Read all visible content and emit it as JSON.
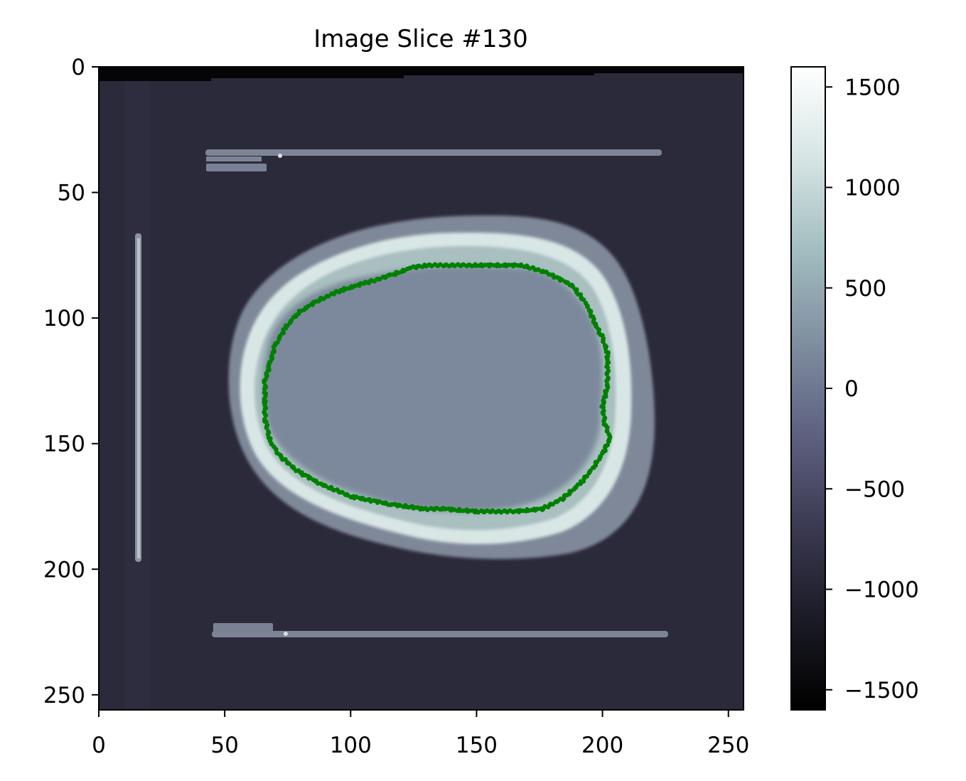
{
  "chart_data": {
    "type": "heatmap",
    "title": "Image Slice #130",
    "xlabel": "",
    "ylabel": "",
    "xlim": [
      0,
      256
    ],
    "ylim": [
      256,
      0
    ],
    "x_ticks": [
      0,
      50,
      100,
      150,
      200,
      250
    ],
    "y_ticks": [
      0,
      50,
      100,
      150,
      200,
      250
    ],
    "x_tick_labels": [
      "0",
      "50",
      "100",
      "150",
      "200",
      "250"
    ],
    "y_tick_labels": [
      "0",
      "50",
      "100",
      "150",
      "200",
      "250"
    ],
    "grid": false,
    "colormap": "bone",
    "colorbar": {
      "range": [
        -1600,
        1600
      ],
      "ticks": [
        -1500,
        -1000,
        -500,
        0,
        500,
        1000,
        1500
      ],
      "tick_labels": [
        "−1500",
        "−1000",
        "−500",
        "0",
        "500",
        "1000",
        "1500"
      ],
      "colors": [
        "#000000",
        "#1b1b26",
        "#3b3a52",
        "#5e6180",
        "#7f8ea0",
        "#a2bdbf",
        "#d6e4e4",
        "#ffffff"
      ]
    },
    "background_color": "#2b2a3b",
    "contour": {
      "color": "#008000",
      "points": [
        [
          130,
          79
        ],
        [
          150,
          79
        ],
        [
          168,
          79
        ],
        [
          178,
          82
        ],
        [
          188,
          87
        ],
        [
          194,
          95
        ],
        [
          197,
          102
        ],
        [
          200,
          108
        ],
        [
          202,
          114
        ],
        [
          202,
          120
        ],
        [
          202,
          127
        ],
        [
          200,
          135
        ],
        [
          201,
          142
        ],
        [
          203,
          148
        ],
        [
          200,
          154
        ],
        [
          196,
          160
        ],
        [
          191,
          166
        ],
        [
          184,
          172
        ],
        [
          176,
          176
        ],
        [
          165,
          177
        ],
        [
          150,
          177
        ],
        [
          137,
          176
        ],
        [
          129,
          176
        ],
        [
          115,
          174
        ],
        [
          100,
          171
        ],
        [
          88,
          166
        ],
        [
          79,
          161
        ],
        [
          72,
          155
        ],
        [
          68,
          149
        ],
        [
          66,
          140
        ],
        [
          66,
          132
        ],
        [
          66,
          125
        ],
        [
          68,
          118
        ],
        [
          70,
          111
        ],
        [
          74,
          104
        ],
        [
          79,
          98
        ],
        [
          87,
          93
        ],
        [
          96,
          89
        ],
        [
          106,
          86
        ],
        [
          116,
          83
        ],
        [
          124,
          80
        ],
        [
          130,
          79
        ]
      ]
    },
    "phantom_values": {
      "air": -1000,
      "soft_tissue": 0,
      "bone": 1400,
      "plastic_bars": 200
    }
  }
}
